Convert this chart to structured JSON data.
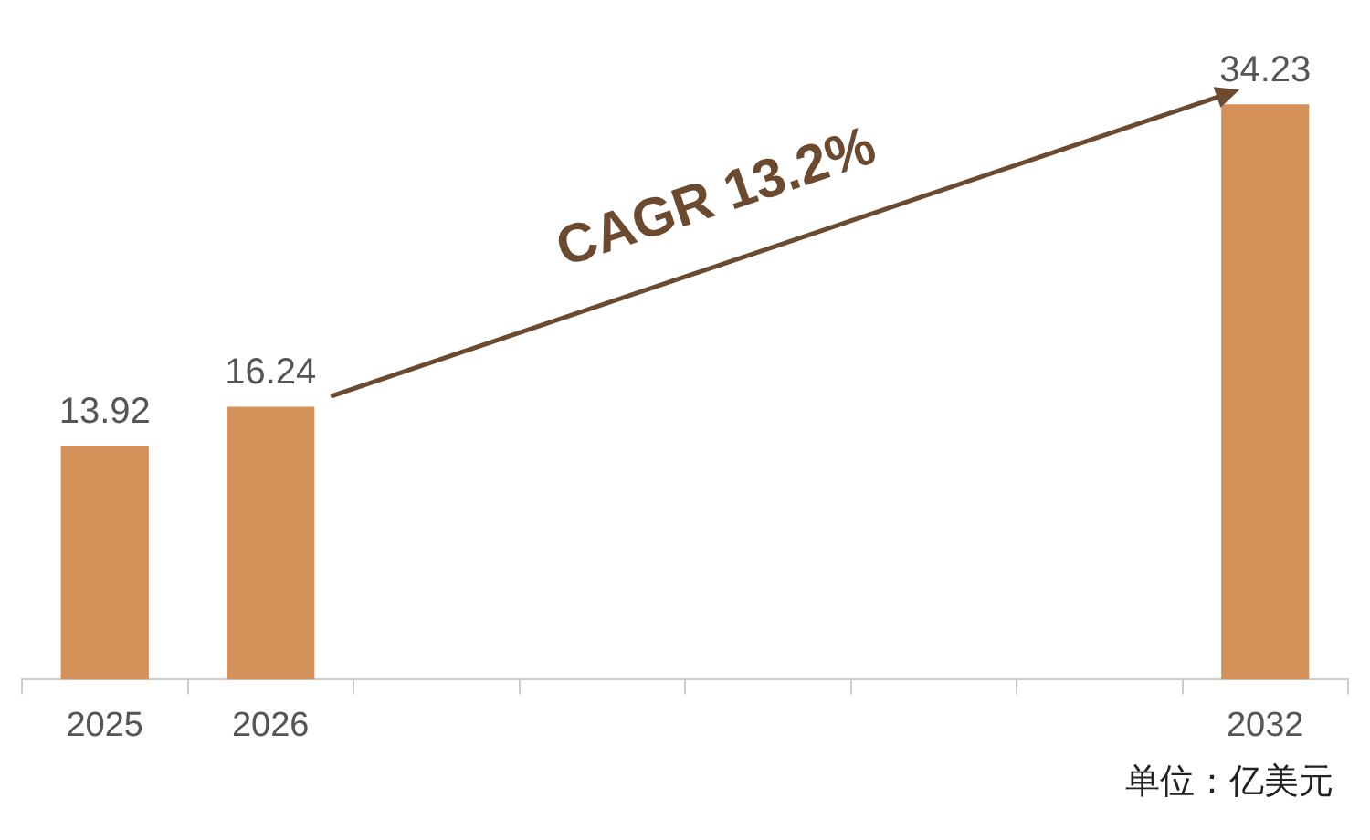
{
  "chart_data": {
    "type": "bar",
    "categories": [
      "2025",
      "2026",
      null,
      null,
      null,
      null,
      null,
      "2032"
    ],
    "values": [
      13.92,
      16.24,
      null,
      null,
      null,
      null,
      null,
      34.23
    ],
    "color": "#d4915a",
    "data_labels": true,
    "grid": false,
    "legend": false,
    "annotations": [
      "CAGR 13.2%",
      "单位：亿美元"
    ]
  }
}
